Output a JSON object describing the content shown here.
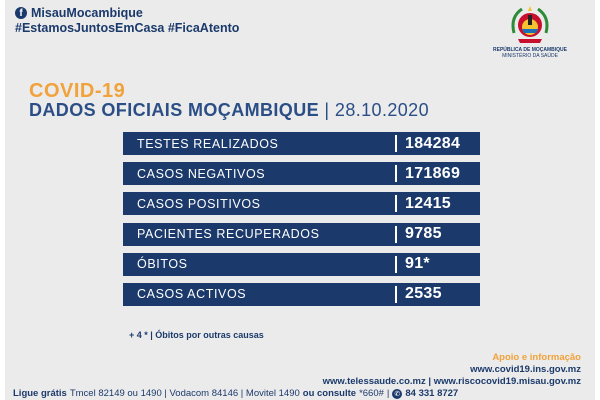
{
  "header": {
    "facebook_icon": "facebook-icon",
    "facebook_page": "MisauMocambique",
    "hashtags": "#EstamosJuntosEmCasa #FicaAtento"
  },
  "emblem": {
    "line1": "REPÚBLICA DE MOÇAMBIQUE",
    "line2": "MINISTÉRIO DA SAÚDE"
  },
  "title": {
    "covid": "COVID-19",
    "subtitle": "DADOS OFICIAIS MOÇAMBIQUE",
    "date": "28.10.2020"
  },
  "stats": [
    {
      "label": "TESTES REALIZADOS",
      "value": "184284"
    },
    {
      "label": "CASOS NEGATIVOS",
      "value": "171869"
    },
    {
      "label": "CASOS POSITIVOS",
      "value": "12415"
    },
    {
      "label": "PACIENTES RECUPERADOS",
      "value": "9785"
    },
    {
      "label": "ÓBITOS",
      "value": "91*"
    },
    {
      "label": "CASOS ACTIVOS",
      "value": "2535"
    }
  ],
  "footnote": "+ 4 * | Óbitos por outras causas",
  "footer": {
    "support_title": "Apoio e informação",
    "website1": "www.covid19.ins.gov.mz",
    "website2": "www.telessaude.co.mz | www.riscocovid19.misau.gov.mz",
    "phones_prefix": "Ligue grátis",
    "phones": "Tmcel 82149 ou 1490 | Vodacom 84146 | Movitel 1490",
    "phones_or": "ou consulte",
    "ussd": "*660#",
    "whatsapp": "84 331 8727"
  },
  "colors": {
    "navy": "#1b3a6b",
    "orange": "#f2a23a",
    "background": "#ebebeb"
  }
}
